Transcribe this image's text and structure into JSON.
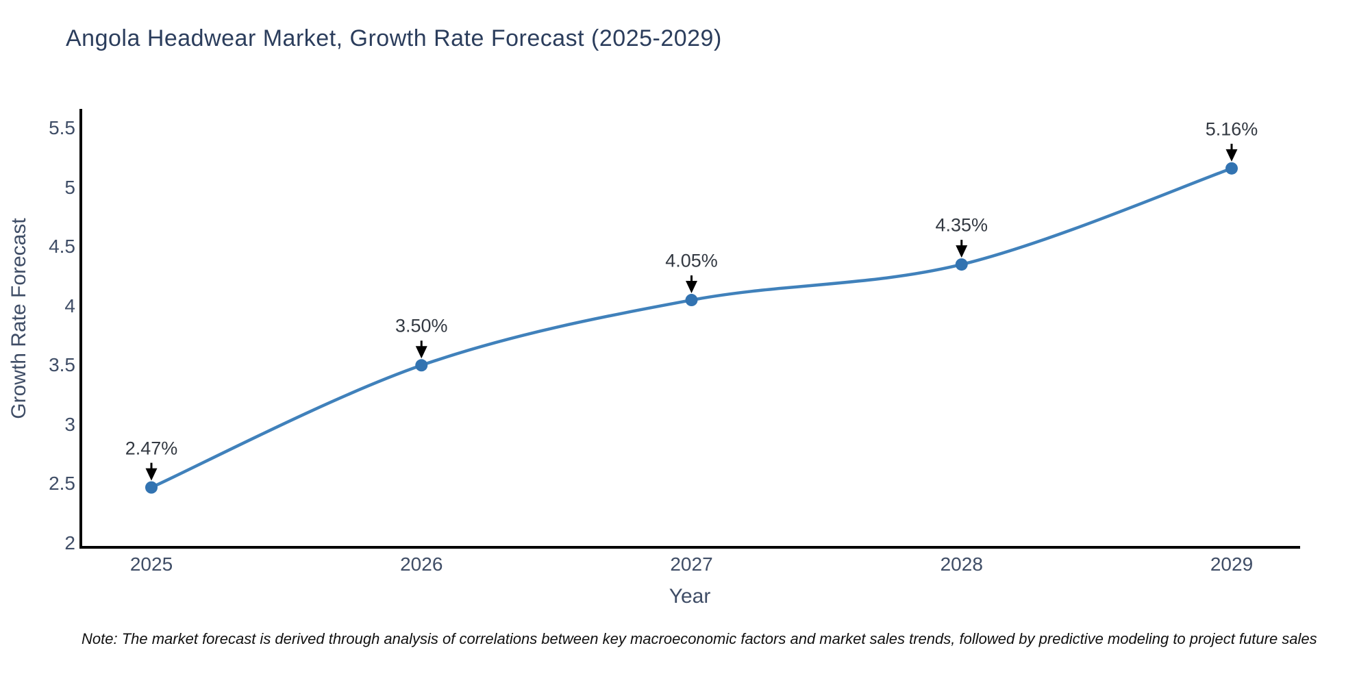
{
  "chart_data": {
    "type": "line",
    "title": "Angola Headwear Market, Growth Rate Forecast (2025-2029)",
    "xlabel": "Year",
    "ylabel": "Growth Rate Forecast",
    "categories": [
      "2025",
      "2026",
      "2027",
      "2028",
      "2029"
    ],
    "series": [
      {
        "name": "Growth Rate Forecast",
        "values": [
          2.47,
          3.5,
          4.05,
          4.35,
          5.16
        ],
        "point_labels": [
          "2.47%",
          "3.50%",
          "4.05%",
          "4.35%",
          "5.16%"
        ]
      }
    ],
    "yticks": [
      2,
      2.5,
      3,
      3.5,
      4,
      4.5,
      5,
      5.5
    ],
    "ylim": [
      2,
      5.66
    ],
    "grid": false,
    "legend_position": "none",
    "line_smoothing": "spline",
    "annotation_arrows": "black-down-arrows",
    "colors": {
      "line": "#4081bb",
      "marker": "#3273b1",
      "axis": "#000000",
      "title_text": "#2b3d5c",
      "tick_text": "#3f4d66",
      "annotation_text": "#333942"
    },
    "note": "Note: The market forecast is derived through analysis of correlations between key macroeconomic factors and market sales trends, followed by predictive modeling to project future sales"
  }
}
